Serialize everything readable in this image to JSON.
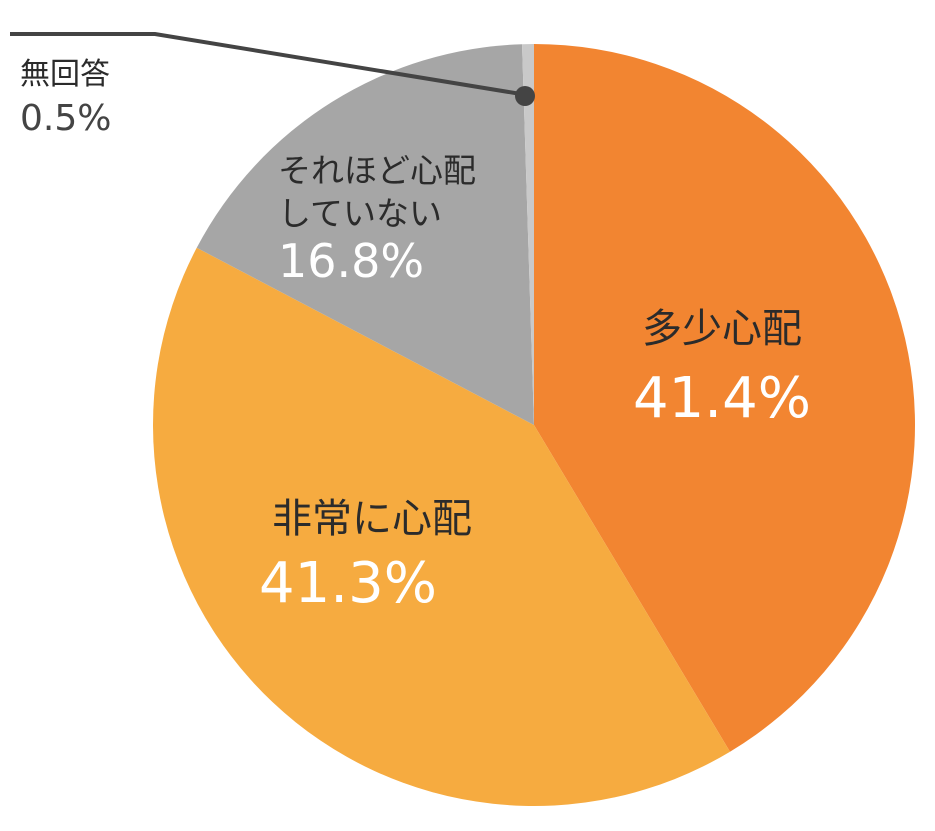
{
  "chart_data": {
    "type": "pie",
    "start_angle": "12 o'clock",
    "direction": "clockwise",
    "slices": [
      {
        "label": "多少心配",
        "value": 41.4,
        "value_label": "41.4%",
        "color": "#f28531"
      },
      {
        "label": "非常に心配",
        "value": 41.3,
        "value_label": "41.3%",
        "color": "#f6ab40"
      },
      {
        "label": "それほど心配していない",
        "label_lines": [
          "それほど心配",
          "していない"
        ],
        "value": 16.8,
        "value_label": "16.8%",
        "color": "#a6a6a6"
      },
      {
        "label": "無回答",
        "value": 0.5,
        "value_label": "0.5%",
        "color": "#c9c9c9"
      }
    ]
  }
}
